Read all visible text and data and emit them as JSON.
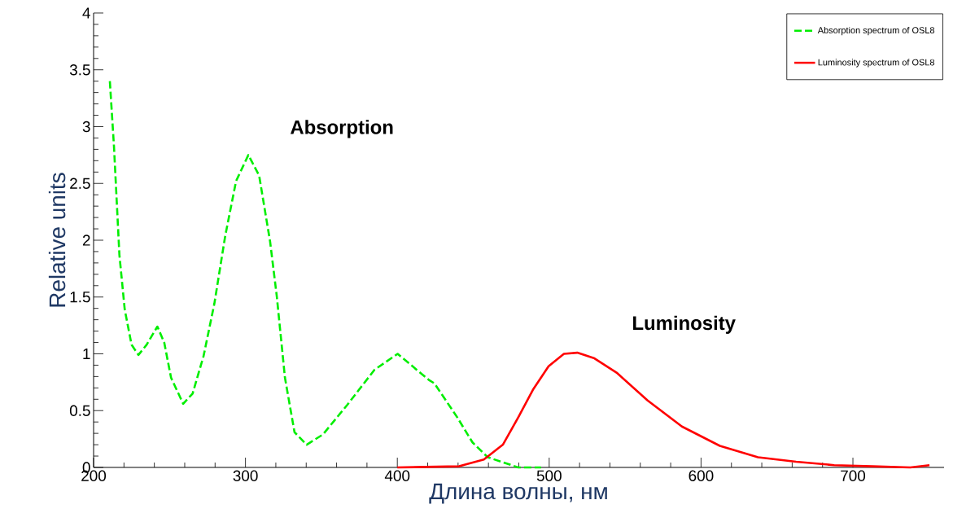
{
  "chart_data": {
    "type": "line",
    "xlabel": "Длина волны, нм",
    "ylabel": "Relative units",
    "xlim": [
      200,
      760
    ],
    "xticks": [
      200,
      300,
      400,
      500,
      600,
      700
    ],
    "ylim": [
      0,
      4
    ],
    "yticks": [
      0,
      0.5,
      1,
      1.5,
      2,
      2.5,
      3,
      3.5,
      4
    ],
    "legend": "top right",
    "grid": false,
    "annotations": [
      "Absorption",
      "Luminosity"
    ],
    "series": [
      {
        "name": "Absorption spectrum of OSL8",
        "color": "#00ee00",
        "line_style": "dashed",
        "x": [
          210.7,
          213.4,
          215.2,
          217,
          220.5,
          225,
          229.5,
          234.9,
          242,
          246.5,
          251,
          259,
          265.2,
          272.4,
          279.5,
          286.7,
          293.8,
          301.9,
          309,
          316.2,
          320.6,
          326,
          332.3,
          340.3,
          351,
          367,
          385,
          400.2,
          420.8,
          424.4,
          439.5,
          449.5,
          459.5,
          479.6,
          494.6
        ],
        "values": [
          3.4,
          2.83,
          2.35,
          1.87,
          1.39,
          1.08,
          0.99,
          1.08,
          1.24,
          1.1,
          0.79,
          0.56,
          0.65,
          0.98,
          1.44,
          2.04,
          2.52,
          2.75,
          2.57,
          1.99,
          1.51,
          0.79,
          0.31,
          0.2,
          0.29,
          0.55,
          0.86,
          1.0,
          0.77,
          0.74,
          0.44,
          0.22,
          0.09,
          0.0,
          0.0
        ]
      },
      {
        "name": "Luminosity spectrum of OSL8",
        "color": "#ff0000",
        "line_style": "solid",
        "x": [
          400,
          440.7,
          457,
          469.5,
          479.6,
          489.6,
          499.6,
          509.7,
          518.5,
          529.8,
          544.8,
          564.8,
          587.4,
          612.4,
          637.5,
          662.6,
          687.7,
          712.8,
          737.8,
          750.4
        ],
        "values": [
          0.0,
          0.01,
          0.07,
          0.2,
          0.44,
          0.69,
          0.89,
          1.0,
          1.01,
          0.96,
          0.83,
          0.59,
          0.36,
          0.19,
          0.09,
          0.05,
          0.02,
          0.01,
          0.0,
          0.02
        ]
      }
    ]
  }
}
